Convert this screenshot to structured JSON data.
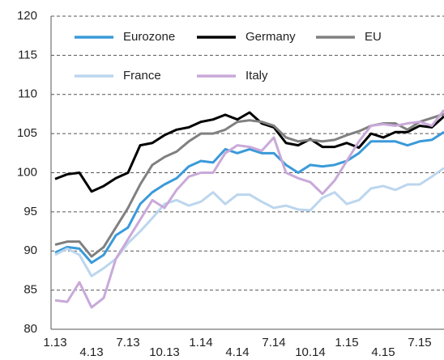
{
  "chart_data": {
    "type": "line",
    "categories": [
      "1.13",
      null,
      null,
      "4.13",
      null,
      null,
      "7.13",
      null,
      null,
      "10.13",
      null,
      null,
      "1.14",
      null,
      null,
      "4.14",
      null,
      null,
      "7.14",
      null,
      null,
      "10.14",
      null,
      null,
      "1.15",
      null,
      null,
      "4.15",
      null,
      null,
      "7.15",
      null,
      null
    ],
    "series": [
      {
        "name": "Eurozone",
        "color": "#3a9ad9",
        "values": [
          89.8,
          90.5,
          90.3,
          88.5,
          89.5,
          92,
          93,
          96,
          97.5,
          98.5,
          99.3,
          100.8,
          101.5,
          101.3,
          103,
          102.5,
          103,
          102.5,
          102.5,
          101,
          100,
          101,
          100.8,
          101,
          101.5,
          102.5,
          104,
          104,
          104,
          103.5,
          104,
          104.2,
          105.2
        ]
      },
      {
        "name": "Germany",
        "color": "#000000",
        "values": [
          99.2,
          99.8,
          100,
          97.6,
          98.3,
          99.3,
          100,
          103.5,
          103.8,
          104.8,
          105.5,
          105.8,
          106.5,
          106.8,
          107.4,
          106.8,
          107.7,
          106.3,
          105.8,
          103.8,
          103.5,
          104.3,
          103.3,
          103.3,
          103.8,
          103.2,
          105,
          104.5,
          105.2,
          105.2,
          106,
          105.8,
          107.2
        ]
      },
      {
        "name": "EU",
        "color": "#808080",
        "values": [
          90.8,
          91.2,
          91.2,
          89.3,
          90.5,
          93,
          95.5,
          98.5,
          101,
          102,
          102.7,
          104,
          105,
          105,
          105.5,
          106.5,
          106.7,
          106.5,
          106,
          104.5,
          104,
          104.2,
          104,
          104.2,
          104.8,
          105.3,
          106,
          106.3,
          106.3,
          105.5,
          106.5,
          107,
          107.5
        ]
      },
      {
        "name": "France",
        "color": "#bcd6ee",
        "values": [
          89.5,
          90.3,
          89.5,
          86.8,
          87.8,
          89,
          91,
          92.5,
          94.2,
          96,
          96.5,
          95.8,
          96.3,
          97.5,
          96,
          97.2,
          97.2,
          96.3,
          95.5,
          95.8,
          95.3,
          95.2,
          96.8,
          97.5,
          96,
          96.5,
          98,
          98.3,
          97.8,
          98.5,
          98.5,
          99.5,
          100.6
        ]
      },
      {
        "name": "Italy",
        "color": "#c9a9d9",
        "values": [
          83.7,
          83.5,
          86,
          82.8,
          84,
          89,
          91.5,
          94,
          96.5,
          95.5,
          97.8,
          99.5,
          100,
          100,
          102.5,
          103.5,
          103.3,
          102.8,
          104.5,
          100,
          99.3,
          98.8,
          97.3,
          99,
          101.5,
          104,
          106,
          106.2,
          106,
          106.3,
          106.5,
          106,
          108
        ]
      }
    ],
    "ylim": [
      80,
      120
    ],
    "yticks": [
      80,
      85,
      90,
      95,
      100,
      105,
      110,
      115,
      120
    ],
    "grid": true
  }
}
